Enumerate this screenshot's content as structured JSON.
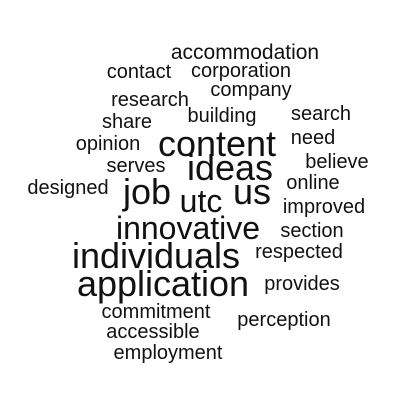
{
  "cloud": {
    "text_color": "#111111",
    "background": "#ffffff",
    "words": [
      {
        "text": "accommodation",
        "weight": 1
      },
      {
        "text": "contact",
        "weight": 1
      },
      {
        "text": "corporation",
        "weight": 1
      },
      {
        "text": "company",
        "weight": 1
      },
      {
        "text": "research",
        "weight": 1
      },
      {
        "text": "building",
        "weight": 1
      },
      {
        "text": "search",
        "weight": 1
      },
      {
        "text": "share",
        "weight": 1
      },
      {
        "text": "content",
        "weight": 3
      },
      {
        "text": "need",
        "weight": 1
      },
      {
        "text": "opinion",
        "weight": 1
      },
      {
        "text": "ideas",
        "weight": 3
      },
      {
        "text": "believe",
        "weight": 1
      },
      {
        "text": "serves",
        "weight": 1
      },
      {
        "text": "online",
        "weight": 1
      },
      {
        "text": "designed",
        "weight": 1
      },
      {
        "text": "job",
        "weight": 3
      },
      {
        "text": "utc",
        "weight": 3
      },
      {
        "text": "us",
        "weight": 3
      },
      {
        "text": "improved",
        "weight": 1
      },
      {
        "text": "innovative",
        "weight": 3
      },
      {
        "text": "section",
        "weight": 1
      },
      {
        "text": "individuals",
        "weight": 3
      },
      {
        "text": "respected",
        "weight": 1
      },
      {
        "text": "application",
        "weight": 4
      },
      {
        "text": "provides",
        "weight": 1
      },
      {
        "text": "commitment",
        "weight": 1
      },
      {
        "text": "perception",
        "weight": 1
      },
      {
        "text": "accessible",
        "weight": 1
      },
      {
        "text": "employment",
        "weight": 1
      }
    ]
  }
}
